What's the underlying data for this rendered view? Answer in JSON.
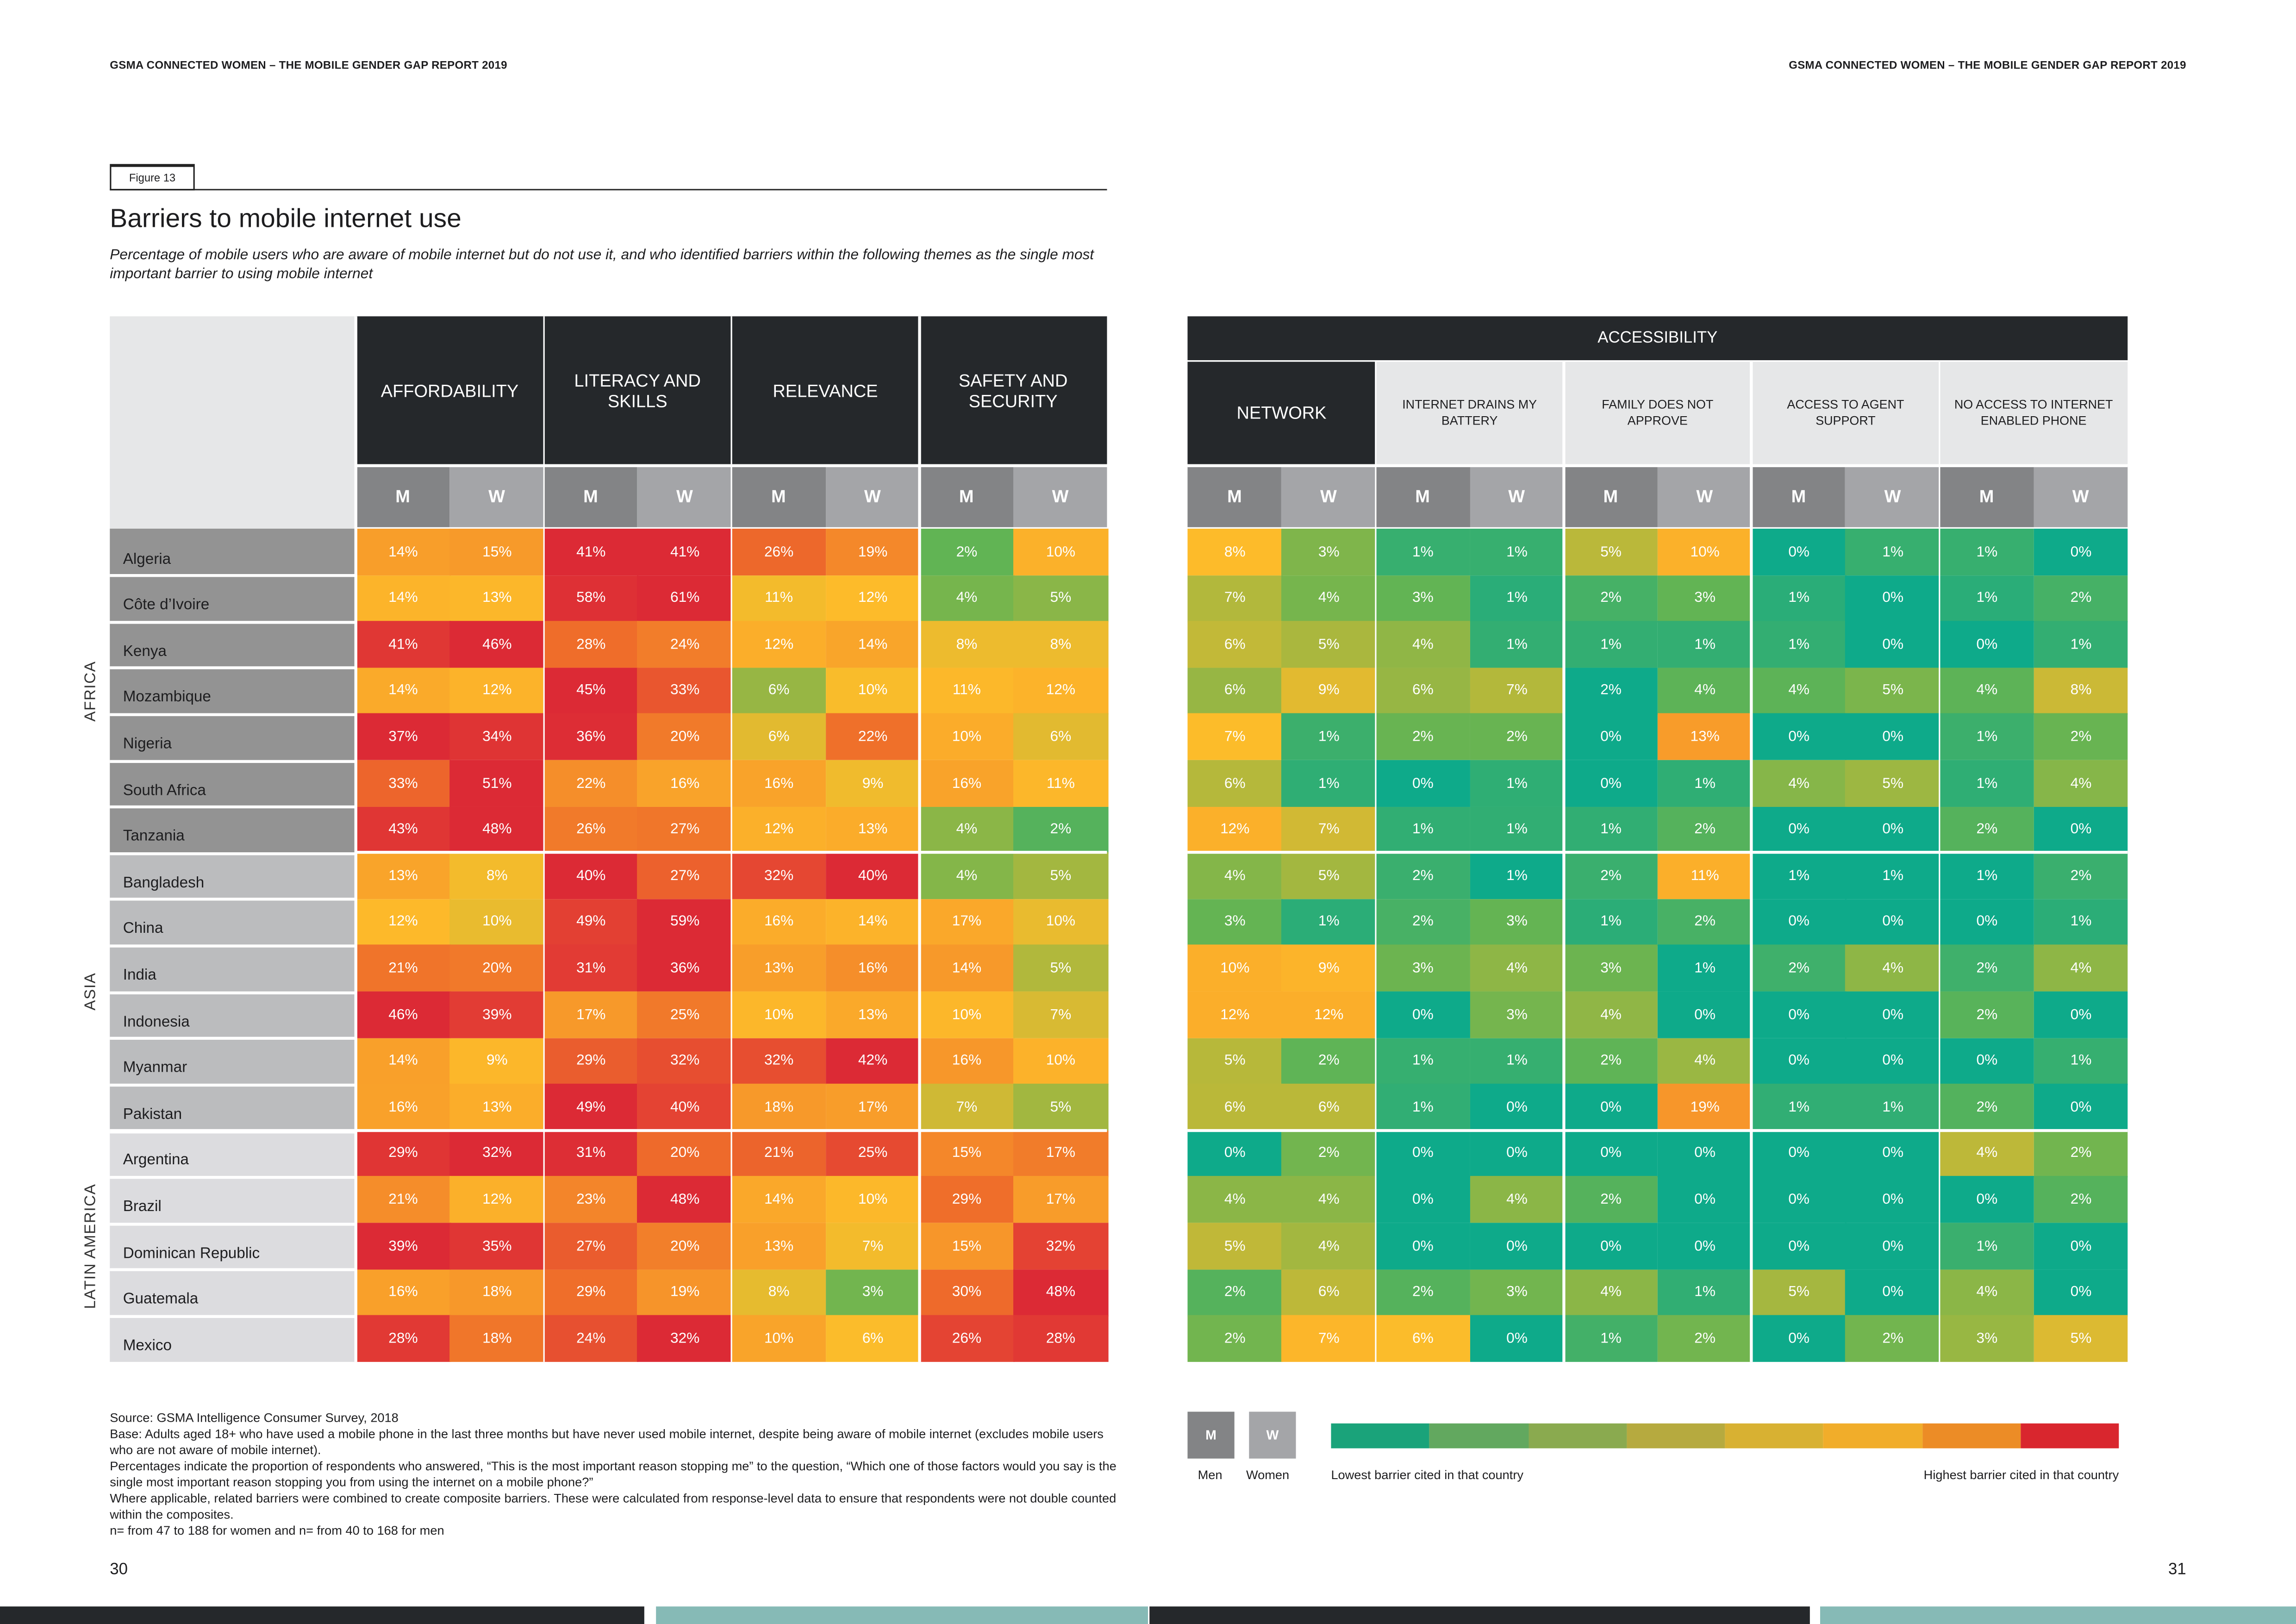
{
  "running_header": {
    "left": "GSMA CONNECTED WOMEN – THE MOBILE GENDER GAP REPORT 2019",
    "right": "GSMA CONNECTED WOMEN – THE MOBILE GENDER GAP REPORT 2019"
  },
  "figure": {
    "label": "Figure 13",
    "title": "Barriers to mobile internet use",
    "subtitle": "Percentage of mobile users who are aware of mobile internet but do not use it, and who identified barriers within the following themes as the single most important barrier to using mobile internet"
  },
  "chart_data": {
    "type": "heatmap",
    "color_scale": "per country: lowest barrier (green) to highest barrier (red)",
    "left_table": {
      "themes": [
        "AFFORDABILITY",
        "LITERACY AND SKILLS",
        "RELEVANCE",
        "SAFETY AND SECURITY"
      ]
    },
    "right_table": {
      "group_header": "ACCESSIBILITY",
      "themes": [
        "NETWORK",
        "INTERNET DRAINS MY BATTERY",
        "FAMILY DOES NOT APPROVE",
        "ACCESS TO AGENT SUPPORT",
        "NO ACCESS TO INTERNET ENABLED PHONE"
      ]
    },
    "sub_columns": [
      "M",
      "W"
    ],
    "regions": [
      "AFRICA",
      "ASIA",
      "LATIN AMERICA"
    ],
    "rows": [
      {
        "region": 0,
        "country": "Algeria",
        "values": [
          "14%",
          "15%",
          "41%",
          "41%",
          "26%",
          "19%",
          "2%",
          "10%",
          "8%",
          "3%",
          "1%",
          "1%",
          "5%",
          "10%",
          "0%",
          "1%",
          "1%",
          "0%"
        ]
      },
      {
        "region": 0,
        "country": "Côte d’Ivoire",
        "values": [
          "14%",
          "13%",
          "58%",
          "61%",
          "11%",
          "12%",
          "4%",
          "5%",
          "7%",
          "4%",
          "3%",
          "1%",
          "2%",
          "3%",
          "1%",
          "0%",
          "1%",
          "2%"
        ]
      },
      {
        "region": 0,
        "country": "Kenya",
        "values": [
          "41%",
          "46%",
          "28%",
          "24%",
          "12%",
          "14%",
          "8%",
          "8%",
          "6%",
          "5%",
          "4%",
          "1%",
          "1%",
          "1%",
          "1%",
          "0%",
          "0%",
          "1%"
        ]
      },
      {
        "region": 0,
        "country": "Mozambique",
        "values": [
          "14%",
          "12%",
          "45%",
          "33%",
          "6%",
          "10%",
          "11%",
          "12%",
          "6%",
          "9%",
          "6%",
          "7%",
          "2%",
          "4%",
          "4%",
          "5%",
          "4%",
          "8%"
        ]
      },
      {
        "region": 0,
        "country": "Nigeria",
        "values": [
          "37%",
          "34%",
          "36%",
          "20%",
          "6%",
          "22%",
          "10%",
          "6%",
          "7%",
          "1%",
          "2%",
          "2%",
          "0%",
          "13%",
          "0%",
          "0%",
          "1%",
          "2%"
        ]
      },
      {
        "region": 0,
        "country": "South Africa",
        "values": [
          "33%",
          "51%",
          "22%",
          "16%",
          "16%",
          "9%",
          "16%",
          "11%",
          "6%",
          "1%",
          "0%",
          "1%",
          "0%",
          "1%",
          "4%",
          "5%",
          "1%",
          "4%"
        ]
      },
      {
        "region": 0,
        "country": "Tanzania",
        "values": [
          "43%",
          "48%",
          "26%",
          "27%",
          "12%",
          "13%",
          "4%",
          "2%",
          "12%",
          "7%",
          "1%",
          "1%",
          "1%",
          "2%",
          "0%",
          "0%",
          "2%",
          "0%"
        ]
      },
      {
        "region": 1,
        "country": "Bangladesh",
        "values": [
          "13%",
          "8%",
          "40%",
          "27%",
          "32%",
          "40%",
          "4%",
          "5%",
          "4%",
          "5%",
          "2%",
          "1%",
          "2%",
          "11%",
          "1%",
          "1%",
          "1%",
          "2%"
        ]
      },
      {
        "region": 1,
        "country": "China",
        "values": [
          "12%",
          "10%",
          "49%",
          "59%",
          "16%",
          "14%",
          "17%",
          "10%",
          "3%",
          "1%",
          "2%",
          "3%",
          "1%",
          "2%",
          "0%",
          "0%",
          "0%",
          "1%"
        ]
      },
      {
        "region": 1,
        "country": "India",
        "values": [
          "21%",
          "20%",
          "31%",
          "36%",
          "13%",
          "16%",
          "14%",
          "5%",
          "10%",
          "9%",
          "3%",
          "4%",
          "3%",
          "1%",
          "2%",
          "4%",
          "2%",
          "4%"
        ]
      },
      {
        "region": 1,
        "country": "Indonesia",
        "values": [
          "46%",
          "39%",
          "17%",
          "25%",
          "10%",
          "13%",
          "10%",
          "7%",
          "12%",
          "12%",
          "0%",
          "3%",
          "4%",
          "0%",
          "0%",
          "0%",
          "2%",
          "0%"
        ]
      },
      {
        "region": 1,
        "country": "Myanmar",
        "values": [
          "14%",
          "9%",
          "29%",
          "32%",
          "32%",
          "42%",
          "16%",
          "10%",
          "5%",
          "2%",
          "1%",
          "1%",
          "2%",
          "4%",
          "0%",
          "0%",
          "0%",
          "1%"
        ]
      },
      {
        "region": 1,
        "country": "Pakistan",
        "values": [
          "16%",
          "13%",
          "49%",
          "40%",
          "18%",
          "17%",
          "7%",
          "5%",
          "6%",
          "6%",
          "1%",
          "0%",
          "0%",
          "19%",
          "1%",
          "1%",
          "2%",
          "0%"
        ]
      },
      {
        "region": 2,
        "country": "Argentina",
        "values": [
          "29%",
          "32%",
          "31%",
          "20%",
          "21%",
          "25%",
          "15%",
          "17%",
          "0%",
          "2%",
          "0%",
          "0%",
          "0%",
          "0%",
          "0%",
          "0%",
          "4%",
          "2%"
        ]
      },
      {
        "region": 2,
        "country": "Brazil",
        "values": [
          "21%",
          "12%",
          "23%",
          "48%",
          "14%",
          "10%",
          "29%",
          "17%",
          "4%",
          "4%",
          "0%",
          "4%",
          "2%",
          "0%",
          "0%",
          "0%",
          "0%",
          "2%"
        ]
      },
      {
        "region": 2,
        "country": "Dominican Republic",
        "values": [
          "39%",
          "35%",
          "27%",
          "20%",
          "13%",
          "7%",
          "15%",
          "32%",
          "5%",
          "4%",
          "0%",
          "0%",
          "0%",
          "0%",
          "0%",
          "0%",
          "1%",
          "0%"
        ]
      },
      {
        "region": 2,
        "country": "Guatemala",
        "values": [
          "16%",
          "18%",
          "29%",
          "19%",
          "8%",
          "3%",
          "30%",
          "48%",
          "2%",
          "6%",
          "2%",
          "3%",
          "4%",
          "1%",
          "5%",
          "0%",
          "4%",
          "0%"
        ]
      },
      {
        "region": 2,
        "country": "Mexico",
        "values": [
          "28%",
          "18%",
          "24%",
          "32%",
          "10%",
          "6%",
          "26%",
          "28%",
          "2%",
          "7%",
          "6%",
          "0%",
          "1%",
          "2%",
          "0%",
          "2%",
          "3%",
          "5%"
        ]
      }
    ]
  },
  "colors": {
    "header_dark": "#25282b",
    "men": "#838486",
    "women": "#a4a5a8",
    "region_fill": [
      "#939393",
      "#bbbcbe",
      "#dcdcdf"
    ],
    "legend_scale": [
      "#1aa37a",
      "#62a85f",
      "#8aaa4f",
      "#b6aa3f",
      "#d8b132",
      "#f1ad2a",
      "#ec8c26",
      "#d9262e"
    ]
  },
  "legend": {
    "men_box": "M",
    "women_box": "W",
    "men_label": "Men",
    "women_label": "Women",
    "low_label": "Lowest barrier cited in that country",
    "high_label": "Highest barrier cited in that country"
  },
  "notes": [
    "Source: GSMA Intelligence Consumer Survey, 2018",
    "Base: Adults aged 18+ who have used a mobile phone in the last three months but have never used mobile internet, despite being aware of mobile internet (excludes mobile users who are not aware of mobile internet).",
    "Percentages indicate the proportion of respondents who answered, “This is the most important reason stopping me” to the question, “Which one of those factors would you say is the single most important reason stopping you from using the internet on a mobile phone?”",
    "Where applicable, related barriers were combined to create composite barriers. These were calculated from response-level data to ensure that respondents were not double counted within the composites.",
    "n= from 47 to 188 for women and n= from 40 to 168 for men"
  ],
  "page_numbers": {
    "left": "30",
    "right": "31"
  }
}
